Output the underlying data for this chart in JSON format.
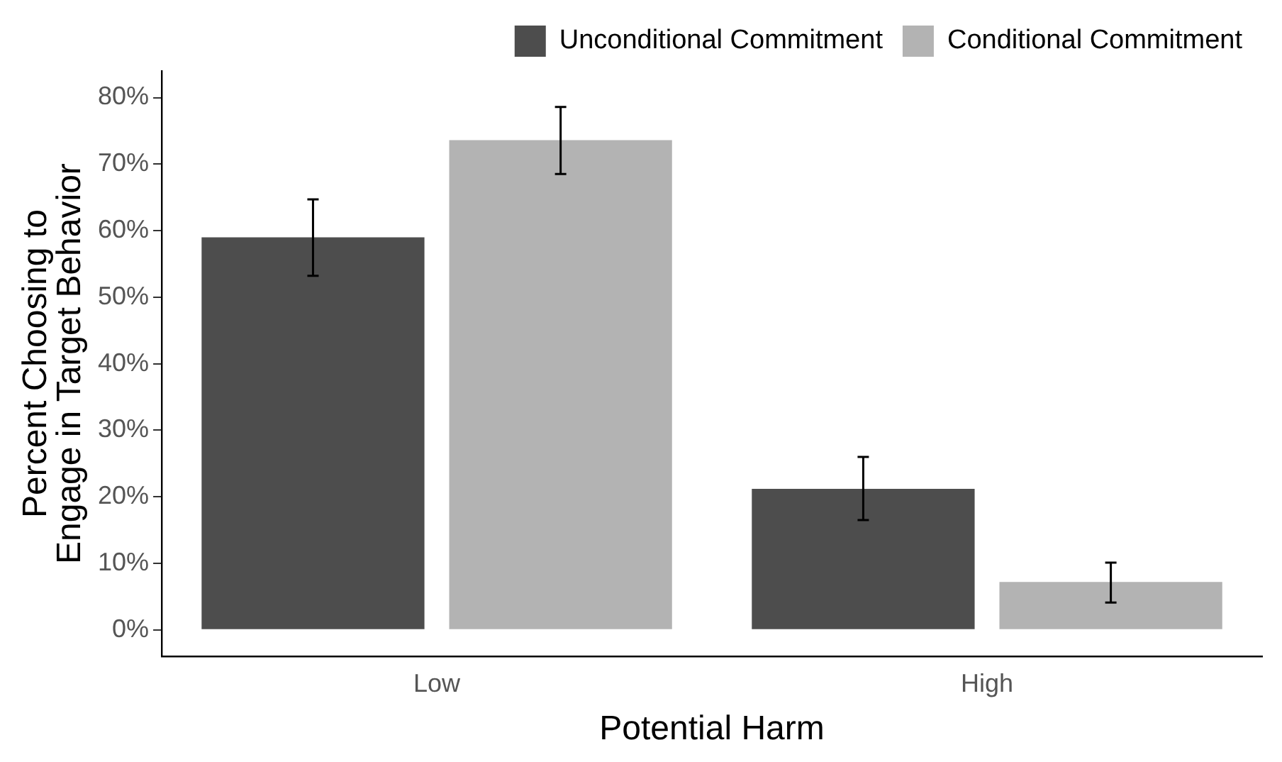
{
  "chart_data": {
    "type": "bar",
    "xlabel": "Potential Harm",
    "ylabel": "Percent Choosing to\nEngage in Target Behavior",
    "categories": [
      "Low",
      "High"
    ],
    "series": [
      {
        "name": "Unconditional Commitment",
        "color": "#4d4d4d",
        "values": [
          59,
          21.2
        ],
        "errors": [
          [
            53.2,
            64.7
          ],
          [
            16.5,
            26
          ]
        ]
      },
      {
        "name": "Conditional Commitment",
        "color": "#b3b3b3",
        "values": [
          73.6,
          7.2
        ],
        "errors": [
          [
            68.5,
            78.6
          ],
          [
            4.1,
            10.1
          ]
        ]
      }
    ],
    "ylim": [
      -4,
      84
    ],
    "yticks": [
      {
        "value": 0,
        "label": "0%"
      },
      {
        "value": 10,
        "label": "10%"
      },
      {
        "value": 20,
        "label": "20%"
      },
      {
        "value": 30,
        "label": "30%"
      },
      {
        "value": 40,
        "label": "40%"
      },
      {
        "value": 50,
        "label": "50%"
      },
      {
        "value": 60,
        "label": "60%"
      },
      {
        "value": 70,
        "label": "70%"
      },
      {
        "value": 80,
        "label": "80%"
      }
    ],
    "grid": false,
    "legend": "top"
  }
}
